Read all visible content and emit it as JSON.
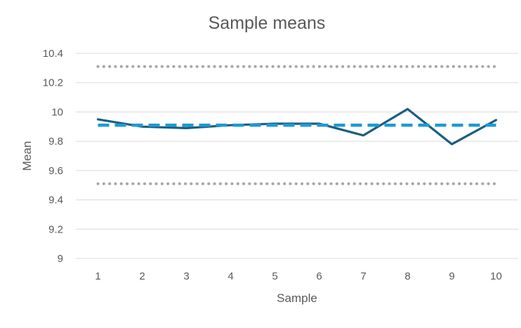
{
  "chart_data": {
    "type": "line",
    "title": "Sample means",
    "xlabel": "Sample",
    "ylabel": "Mean",
    "x": [
      1,
      2,
      3,
      4,
      5,
      6,
      7,
      8,
      9,
      10
    ],
    "ylim": [
      9,
      10.4
    ],
    "yticks": [
      9,
      9.2,
      9.4,
      9.6,
      9.8,
      10,
      10.2,
      10.4
    ],
    "ytick_labels": [
      "9",
      "9.2",
      "9.4",
      "9.6",
      "9.8",
      "10",
      "10.2",
      "10.4"
    ],
    "grid": true,
    "legend": "none",
    "series": [
      {
        "key": "means",
        "style": "solid",
        "color": "#1b5e80",
        "values": [
          9.95,
          9.9,
          9.89,
          9.91,
          9.92,
          9.92,
          9.84,
          10.02,
          9.78,
          9.945
        ]
      },
      {
        "key": "center",
        "style": "dashed",
        "color": "#1c9ad6",
        "values": [
          9.91,
          9.91,
          9.91,
          9.91,
          9.91,
          9.91,
          9.91,
          9.91,
          9.91,
          9.91
        ]
      },
      {
        "key": "ucl",
        "style": "dotted",
        "color": "#a6a6a6",
        "values": [
          10.31,
          10.31,
          10.31,
          10.31,
          10.31,
          10.31,
          10.31,
          10.31,
          10.31,
          10.31
        ]
      },
      {
        "key": "lcl",
        "style": "dotted",
        "color": "#a6a6a6",
        "values": [
          9.51,
          9.51,
          9.51,
          9.51,
          9.51,
          9.51,
          9.51,
          9.51,
          9.51,
          9.51
        ]
      }
    ]
  }
}
